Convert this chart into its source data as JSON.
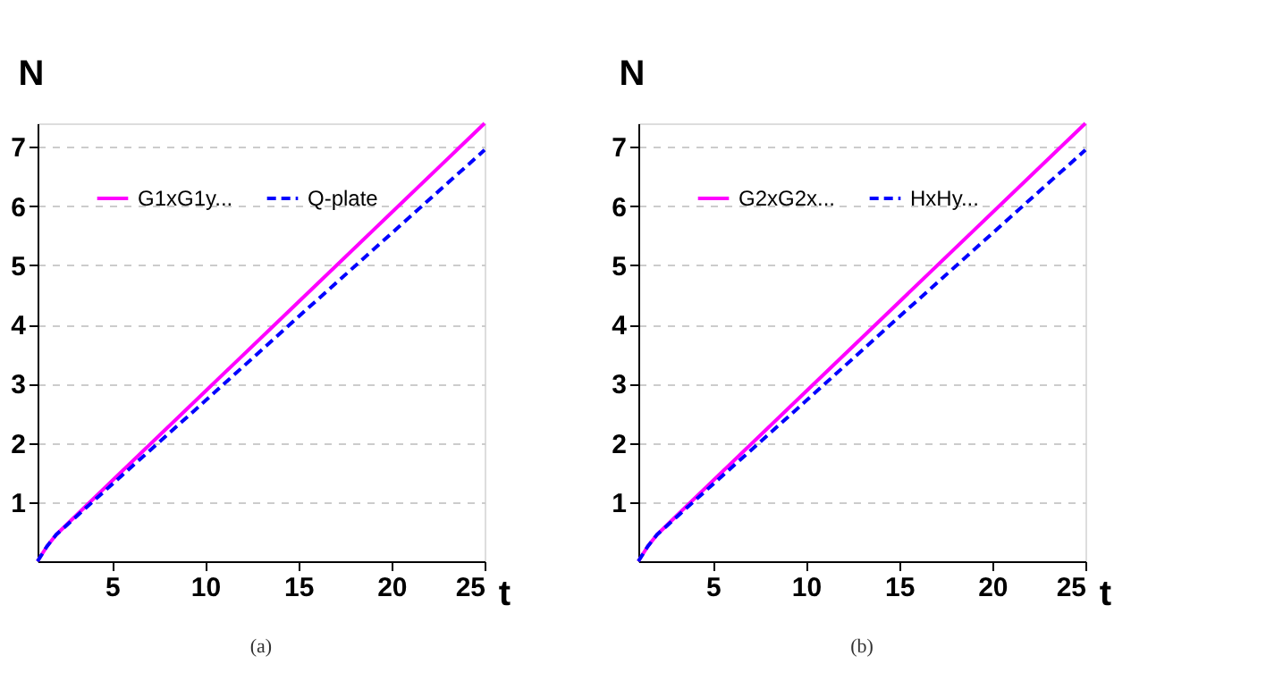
{
  "chart_data": [
    {
      "type": "line",
      "xlabel": "t",
      "ylabel": "N",
      "annotations": [
        "(a)"
      ],
      "x": [
        1,
        1.5,
        2,
        2.5,
        5,
        10,
        15,
        20,
        25
      ],
      "xlim": [
        1,
        25
      ],
      "xticks": [
        5,
        10,
        15,
        20,
        25
      ],
      "ylim": [
        0,
        7.4
      ],
      "yticks": [
        1,
        2,
        3,
        4,
        5,
        6,
        7
      ],
      "grid": "y",
      "legend": "top left",
      "series": [
        {
          "name": "G1xG1y...",
          "color": "#ff00ff",
          "line_style": "solid",
          "values": [
            0,
            0.25,
            0.45,
            0.6,
            1.36,
            2.87,
            4.38,
            5.89,
            7.4
          ]
        },
        {
          "name": "Q-plate",
          "color": "#0000ff",
          "line_style": "dashed",
          "values": [
            0,
            0.25,
            0.45,
            0.59,
            1.3,
            2.71,
            4.13,
            5.54,
            6.95
          ]
        }
      ]
    },
    {
      "type": "line",
      "xlabel": "t",
      "ylabel": "N",
      "annotations": [
        "(b)"
      ],
      "x": [
        1,
        1.5,
        2,
        2.5,
        5,
        10,
        15,
        20,
        25
      ],
      "xlim": [
        1,
        25
      ],
      "xticks": [
        5,
        10,
        15,
        20,
        25
      ],
      "ylim": [
        0,
        7.4
      ],
      "yticks": [
        1,
        2,
        3,
        4,
        5,
        6,
        7
      ],
      "grid": "y",
      "legend": "top left",
      "series": [
        {
          "name": "G2xG2x...",
          "color": "#ff00ff",
          "line_style": "solid",
          "values": [
            0,
            0.25,
            0.45,
            0.6,
            1.36,
            2.87,
            4.38,
            5.89,
            7.4
          ]
        },
        {
          "name": "HxHy...",
          "color": "#0000ff",
          "line_style": "dashed",
          "values": [
            0,
            0.25,
            0.45,
            0.59,
            1.3,
            2.71,
            4.13,
            5.54,
            6.95
          ]
        }
      ]
    }
  ]
}
